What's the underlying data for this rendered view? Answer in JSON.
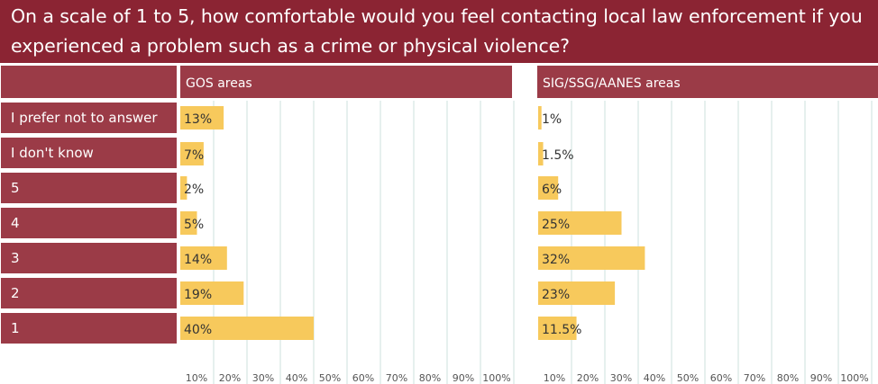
{
  "title": "On a scale of 1 to 5, how comfortable would you feel contacting local law enforcement if you experienced a problem such as a crime or physical violence?",
  "colors": {
    "title_bg": "#8b2433",
    "header_bg": "#9b3b47",
    "row_label_bg": "#9b3b47",
    "bar": "#f7c95c",
    "grid": "#cde0dd"
  },
  "chart_data": [
    {
      "type": "bar",
      "orientation": "horizontal",
      "title": "GOS areas",
      "categories": [
        "I prefer not to answer",
        "I don't know",
        "5",
        "4",
        "3",
        "2",
        "1"
      ],
      "values": [
        13,
        7,
        2,
        5,
        14,
        19,
        40
      ],
      "value_labels": [
        "13%",
        "7%",
        "2%",
        "5%",
        "14%",
        "19%",
        "40%"
      ],
      "xticks": [
        "10%",
        "20%",
        "30%",
        "40%",
        "50%",
        "60%",
        "70%",
        "80%",
        "90%",
        "100%"
      ],
      "xlim": [
        0,
        100
      ],
      "grid": true
    },
    {
      "type": "bar",
      "orientation": "horizontal",
      "title": "SIG/SSG/AANES areas",
      "categories": [
        "I prefer not to answer",
        "I don't know",
        "5",
        "4",
        "3",
        "2",
        "1"
      ],
      "values": [
        1,
        1.5,
        6,
        25,
        32,
        23,
        11.5
      ],
      "value_labels": [
        "1%",
        "1.5%",
        "6%",
        "25%",
        "32%",
        "23%",
        "11.5%"
      ],
      "xticks": [
        "10%",
        "20%",
        "30%",
        "40%",
        "50%",
        "60%",
        "70%",
        "80%",
        "90%",
        "100%"
      ],
      "xlim": [
        0,
        100
      ],
      "grid": true
    }
  ]
}
